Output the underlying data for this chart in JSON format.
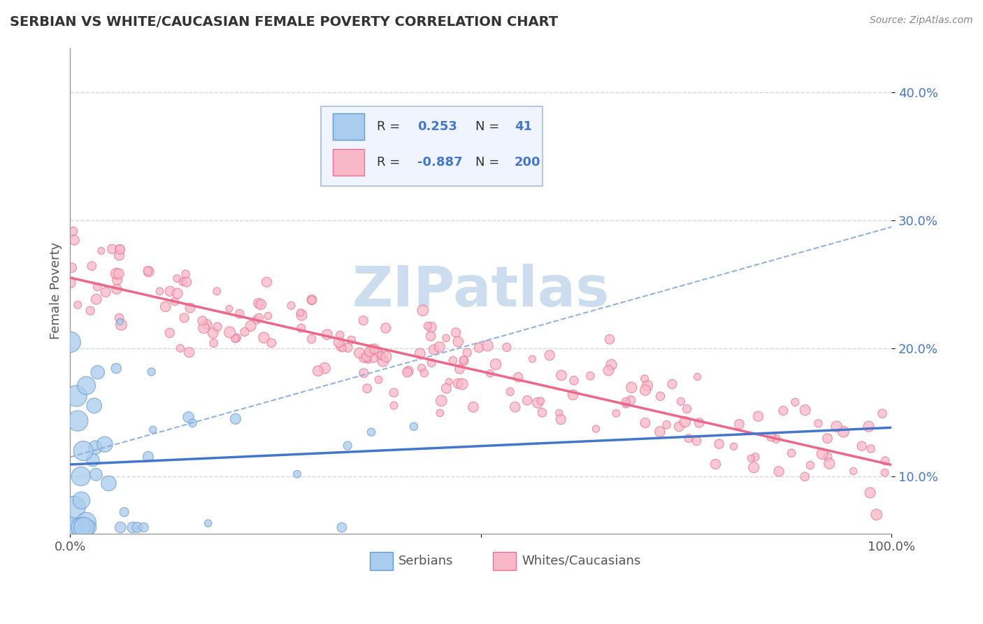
{
  "title": "SERBIAN VS WHITE/CAUCASIAN FEMALE POVERTY CORRELATION CHART",
  "source": "Source: ZipAtlas.com",
  "ylabel": "Female Poverty",
  "yticks": [
    "10.0%",
    "20.0%",
    "30.0%",
    "40.0%"
  ],
  "ytick_vals": [
    0.1,
    0.2,
    0.3,
    0.4
  ],
  "xlim": [
    0.0,
    1.0
  ],
  "ylim": [
    0.055,
    0.435
  ],
  "serbian_R": 0.253,
  "serbian_N": 41,
  "white_R": -0.887,
  "white_N": 200,
  "serbian_dot_color": "#aaccee",
  "serbian_edge_color": "#6699cc",
  "white_dot_color": "#f9b8c8",
  "white_edge_color": "#e87090",
  "serbian_line_color": "#4477cc",
  "white_line_color": "#ee6688",
  "dashed_line_color": "#88aadd",
  "watermark_color": "#ccddf0",
  "background_color": "#ffffff",
  "grid_color": "#cccccc",
  "title_color": "#333333",
  "ytick_color": "#4477cc",
  "legend_R_color": "#4477cc",
  "legend_N_color": "#4477cc",
  "legend_box_color": "#f0f4ff",
  "legend_border_color": "#aabbdd"
}
